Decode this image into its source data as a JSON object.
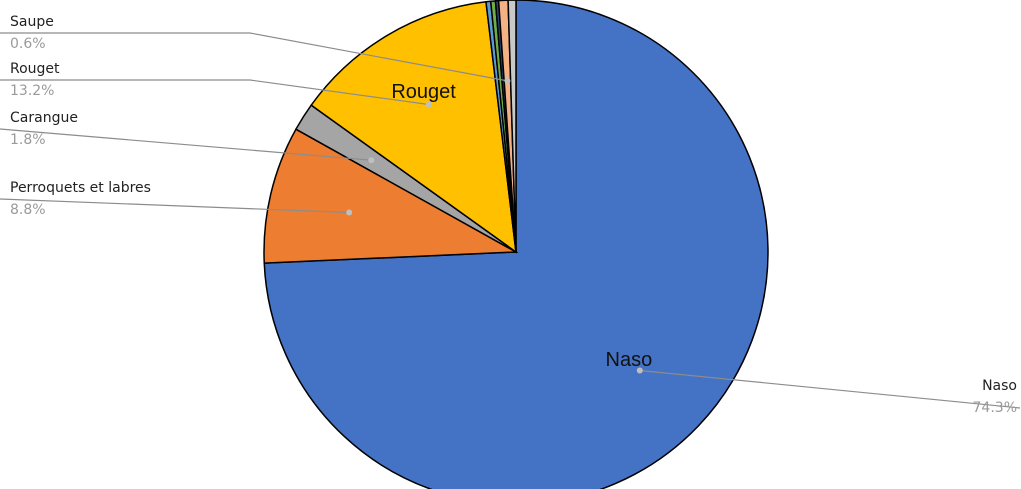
{
  "chart_data": {
    "type": "pie",
    "start_angle_deg": 0,
    "direction": "clockwise",
    "slices": [
      {
        "name": "Naso",
        "value": 74.3,
        "percent_label": "74.3%",
        "color": "#4472C4",
        "inner_label": "Naso",
        "has_callout": true
      },
      {
        "name": "Perroquets et labres",
        "value": 8.8,
        "percent_label": "8.8%",
        "color": "#ED7D31",
        "inner_label": "",
        "has_callout": true
      },
      {
        "name": "Carangue",
        "value": 1.8,
        "percent_label": "1.8%",
        "color": "#A5A5A5",
        "inner_label": "",
        "has_callout": true
      },
      {
        "name": "Rouget",
        "value": 13.2,
        "percent_label": "13.2%",
        "color": "#FFC000",
        "inner_label": "Rouget",
        "has_callout": true
      },
      {
        "name": "",
        "value": 0.3,
        "percent_label": "",
        "color": "#5B9BD5",
        "inner_label": "",
        "has_callout": false
      },
      {
        "name": "",
        "value": 0.3,
        "percent_label": "",
        "color": "#70AD47",
        "inner_label": "",
        "has_callout": false
      },
      {
        "name": "",
        "value": 0.2,
        "percent_label": "",
        "color": "#264478",
        "inner_label": "",
        "has_callout": false
      },
      {
        "name": "Saupe",
        "value": 0.6,
        "percent_label": "0.6%",
        "color": "#F4B183",
        "inner_label": "",
        "has_callout": true
      },
      {
        "name": "",
        "value": 0.5,
        "percent_label": "",
        "color": "#C9C9C9",
        "inner_label": "",
        "has_callout": false
      }
    ]
  }
}
